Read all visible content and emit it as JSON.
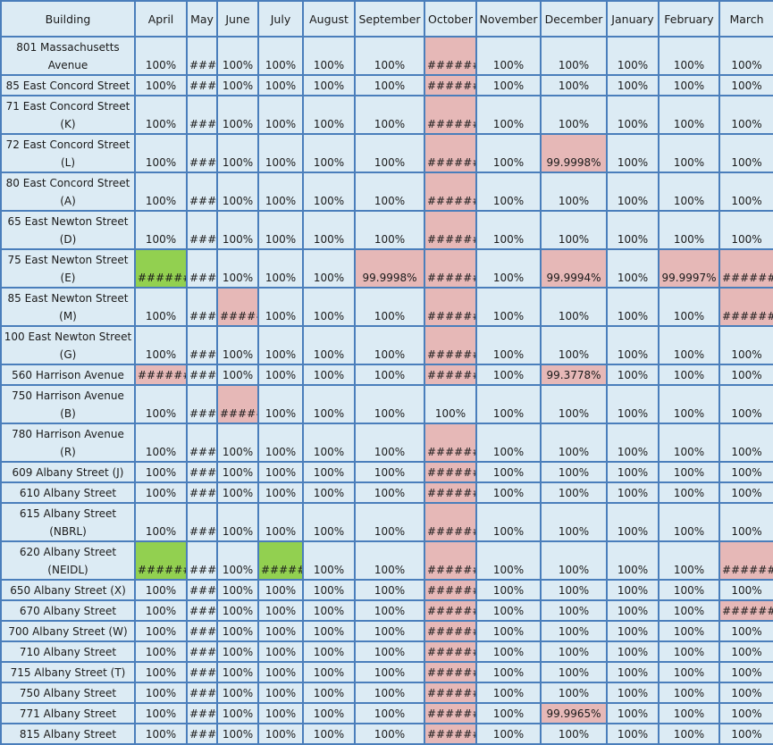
{
  "colors": {
    "header_bg": "#dcebf4",
    "border": "#4a7ebb",
    "red": "#e6b8b7",
    "green": "#92d050"
  },
  "headers": [
    "Building",
    "April",
    "May",
    "June",
    "July",
    "August",
    "September",
    "October",
    "November",
    "December",
    "January",
    "February",
    "March"
  ],
  "rows": [
    {
      "name": "801 Massachusetts Avenue",
      "lines": 2,
      "values": [
        "100%",
        "####",
        "100%",
        "100%",
        "100%",
        "100%",
        "#######",
        "100%",
        "100%",
        "100%",
        "100%",
        "100%"
      ],
      "status": [
        "",
        "",
        "",
        "",
        "",
        "",
        "r",
        "",
        "",
        "",
        "",
        ""
      ]
    },
    {
      "name": "85 East Concord Street",
      "lines": 1,
      "values": [
        "100%",
        "####",
        "100%",
        "100%",
        "100%",
        "100%",
        "#######",
        "100%",
        "100%",
        "100%",
        "100%",
        "100%"
      ],
      "status": [
        "",
        "",
        "",
        "",
        "",
        "",
        "r",
        "",
        "",
        "",
        "",
        ""
      ]
    },
    {
      "name": "71 East Concord Street (K)",
      "lines": 2,
      "values": [
        "100%",
        "####",
        "100%",
        "100%",
        "100%",
        "100%",
        "#######",
        "100%",
        "100%",
        "100%",
        "100%",
        "100%"
      ],
      "status": [
        "",
        "",
        "",
        "",
        "",
        "",
        "r",
        "",
        "",
        "",
        "",
        ""
      ]
    },
    {
      "name": "72 East Concord Street (L)",
      "lines": 2,
      "values": [
        "100%",
        "####",
        "100%",
        "100%",
        "100%",
        "100%",
        "#######",
        "100%",
        "99.9998%",
        "100%",
        "100%",
        "100%"
      ],
      "status": [
        "",
        "",
        "",
        "",
        "",
        "",
        "r",
        "",
        "r",
        "",
        "",
        ""
      ]
    },
    {
      "name": "80 East Concord Street (A)",
      "lines": 2,
      "values": [
        "100%",
        "####",
        "100%",
        "100%",
        "100%",
        "100%",
        "#######",
        "100%",
        "100%",
        "100%",
        "100%",
        "100%"
      ],
      "status": [
        "",
        "",
        "",
        "",
        "",
        "",
        "r",
        "",
        "",
        "",
        "",
        ""
      ]
    },
    {
      "name": "65 East Newton Street (D)",
      "lines": 2,
      "values": [
        "100%",
        "####",
        "100%",
        "100%",
        "100%",
        "100%",
        "#######",
        "100%",
        "100%",
        "100%",
        "100%",
        "100%"
      ],
      "status": [
        "",
        "",
        "",
        "",
        "",
        "",
        "r",
        "",
        "",
        "",
        "",
        ""
      ]
    },
    {
      "name": "75 East Newton Street (E)",
      "lines": 2,
      "values": [
        "#######",
        "####",
        "100%",
        "100%",
        "100%",
        "99.9998%",
        "#######",
        "100%",
        "99.9994%",
        "100%",
        "99.9997%",
        "#######"
      ],
      "status": [
        "g",
        "",
        "",
        "",
        "",
        "r",
        "r",
        "",
        "r",
        "",
        "r",
        "r"
      ]
    },
    {
      "name": "85 East Newton Street (M)",
      "lines": 2,
      "values": [
        "100%",
        "####",
        "#####",
        "100%",
        "100%",
        "100%",
        "#######",
        "100%",
        "100%",
        "100%",
        "100%",
        "#######"
      ],
      "status": [
        "",
        "",
        "r",
        "",
        "",
        "",
        "r",
        "",
        "",
        "",
        "",
        "r"
      ]
    },
    {
      "name": "100 East Newton Street (G)",
      "lines": 2,
      "values": [
        "100%",
        "####",
        "100%",
        "100%",
        "100%",
        "100%",
        "#######",
        "100%",
        "100%",
        "100%",
        "100%",
        "100%"
      ],
      "status": [
        "",
        "",
        "",
        "",
        "",
        "",
        "r",
        "",
        "",
        "",
        "",
        ""
      ]
    },
    {
      "name": "560 Harrison Avenue",
      "lines": 1,
      "values": [
        "#######",
        "####",
        "100%",
        "100%",
        "100%",
        "100%",
        "#######",
        "100%",
        "99.3778%",
        "100%",
        "100%",
        "100%"
      ],
      "status": [
        "r",
        "",
        "",
        "",
        "",
        "",
        "r",
        "",
        "r",
        "",
        "",
        ""
      ]
    },
    {
      "name": "750 Harrison Avenue (B)",
      "lines": 2,
      "values": [
        "100%",
        "####",
        "#####",
        "100%",
        "100%",
        "100%",
        "100%",
        "100%",
        "100%",
        "100%",
        "100%",
        "100%"
      ],
      "status": [
        "",
        "",
        "r",
        "",
        "",
        "",
        "",
        "",
        "",
        "",
        "",
        ""
      ]
    },
    {
      "name": "780 Harrison Avenue (R)",
      "lines": 2,
      "values": [
        "100%",
        "####",
        "100%",
        "100%",
        "100%",
        "100%",
        "#######",
        "100%",
        "100%",
        "100%",
        "100%",
        "100%"
      ],
      "status": [
        "",
        "",
        "",
        "",
        "",
        "",
        "r",
        "",
        "",
        "",
        "",
        ""
      ]
    },
    {
      "name": "609 Albany Street (J)",
      "lines": 1,
      "values": [
        "100%",
        "####",
        "100%",
        "100%",
        "100%",
        "100%",
        "#######",
        "100%",
        "100%",
        "100%",
        "100%",
        "100%"
      ],
      "status": [
        "",
        "",
        "",
        "",
        "",
        "",
        "r",
        "",
        "",
        "",
        "",
        ""
      ]
    },
    {
      "name": "610 Albany Street",
      "lines": 1,
      "values": [
        "100%",
        "####",
        "100%",
        "100%",
        "100%",
        "100%",
        "#######",
        "100%",
        "100%",
        "100%",
        "100%",
        "100%"
      ],
      "status": [
        "",
        "",
        "",
        "",
        "",
        "",
        "r",
        "",
        "",
        "",
        "",
        ""
      ]
    },
    {
      "name": "615 Albany Street (NBRL)",
      "lines": 2,
      "values": [
        "100%",
        "####",
        "100%",
        "100%",
        "100%",
        "100%",
        "#######",
        "100%",
        "100%",
        "100%",
        "100%",
        "100%"
      ],
      "status": [
        "",
        "",
        "",
        "",
        "",
        "",
        "r",
        "",
        "",
        "",
        "",
        ""
      ]
    },
    {
      "name": "620 Albany Street (NEIDL)",
      "lines": 2,
      "values": [
        "#######",
        "####",
        "100%",
        "######",
        "100%",
        "100%",
        "#######",
        "100%",
        "100%",
        "100%",
        "100%",
        "#######"
      ],
      "status": [
        "g",
        "",
        "",
        "g",
        "",
        "",
        "r",
        "",
        "",
        "",
        "",
        "r"
      ]
    },
    {
      "name": "650 Albany Street (X)",
      "lines": 1,
      "values": [
        "100%",
        "####",
        "100%",
        "100%",
        "100%",
        "100%",
        "#######",
        "100%",
        "100%",
        "100%",
        "100%",
        "100%"
      ],
      "status": [
        "",
        "",
        "",
        "",
        "",
        "",
        "r",
        "",
        "",
        "",
        "",
        ""
      ]
    },
    {
      "name": "670 Albany Street",
      "lines": 1,
      "values": [
        "100%",
        "####",
        "100%",
        "100%",
        "100%",
        "100%",
        "#######",
        "100%",
        "100%",
        "100%",
        "100%",
        "#######"
      ],
      "status": [
        "",
        "",
        "",
        "",
        "",
        "",
        "r",
        "",
        "",
        "",
        "",
        "r"
      ]
    },
    {
      "name": "700 Albany Street (W)",
      "lines": 1,
      "values": [
        "100%",
        "####",
        "100%",
        "100%",
        "100%",
        "100%",
        "#######",
        "100%",
        "100%",
        "100%",
        "100%",
        "100%"
      ],
      "status": [
        "",
        "",
        "",
        "",
        "",
        "",
        "r",
        "",
        "",
        "",
        "",
        ""
      ]
    },
    {
      "name": "710 Albany Street",
      "lines": 1,
      "values": [
        "100%",
        "####",
        "100%",
        "100%",
        "100%",
        "100%",
        "#######",
        "100%",
        "100%",
        "100%",
        "100%",
        "100%"
      ],
      "status": [
        "",
        "",
        "",
        "",
        "",
        "",
        "r",
        "",
        "",
        "",
        "",
        ""
      ]
    },
    {
      "name": "715 Albany Street (T)",
      "lines": 1,
      "values": [
        "100%",
        "####",
        "100%",
        "100%",
        "100%",
        "100%",
        "#######",
        "100%",
        "100%",
        "100%",
        "100%",
        "100%"
      ],
      "status": [
        "",
        "",
        "",
        "",
        "",
        "",
        "r",
        "",
        "",
        "",
        "",
        ""
      ]
    },
    {
      "name": "750 Albany Street",
      "lines": 1,
      "values": [
        "100%",
        "####",
        "100%",
        "100%",
        "100%",
        "100%",
        "#######",
        "100%",
        "100%",
        "100%",
        "100%",
        "100%"
      ],
      "status": [
        "",
        "",
        "",
        "",
        "",
        "",
        "r",
        "",
        "",
        "",
        "",
        ""
      ]
    },
    {
      "name": "771 Albany Street",
      "lines": 1,
      "values": [
        "100%",
        "####",
        "100%",
        "100%",
        "100%",
        "100%",
        "#######",
        "100%",
        "99.9965%",
        "100%",
        "100%",
        "100%"
      ],
      "status": [
        "",
        "",
        "",
        "",
        "",
        "",
        "r",
        "",
        "r",
        "",
        "",
        ""
      ]
    },
    {
      "name": "815 Albany Street",
      "lines": 1,
      "values": [
        "100%",
        "####",
        "100%",
        "100%",
        "100%",
        "100%",
        "#######",
        "100%",
        "100%",
        "100%",
        "100%",
        "100%"
      ],
      "status": [
        "",
        "",
        "",
        "",
        "",
        "",
        "r",
        "",
        "",
        "",
        "",
        ""
      ]
    }
  ]
}
